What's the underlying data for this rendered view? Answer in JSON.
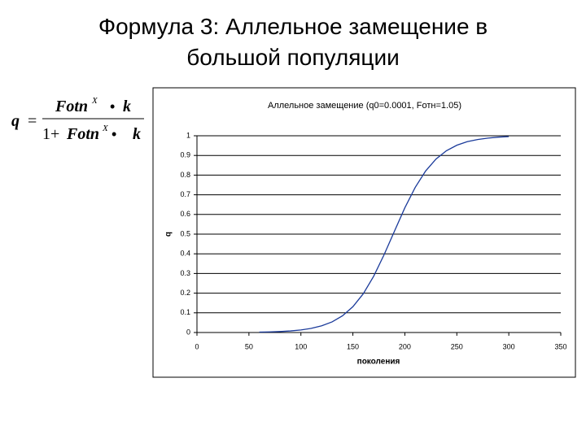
{
  "slide": {
    "title": "Формула 3: Аллельное замещение в большой популяции"
  },
  "formula": {
    "lhs": "q",
    "equals": "=",
    "numerator": {
      "base": "Fotn",
      "exponent": "X",
      "operator": "•",
      "factor": "k"
    },
    "denominator": {
      "prefix": "1+",
      "base": "Fotn",
      "exponent": "X",
      "operator": "•",
      "factor": "k"
    }
  },
  "chart_data": {
    "type": "line",
    "title": "Аллельное замещение (q0=0.0001, Fотн=1.05)",
    "x_label": "поколения",
    "y_label": "q",
    "x": [
      60,
      70,
      80,
      90,
      100,
      110,
      120,
      130,
      140,
      150,
      160,
      170,
      180,
      190,
      200,
      210,
      220,
      230,
      240,
      250,
      260,
      270,
      280,
      290,
      300
    ],
    "values": [
      0.002,
      0.003,
      0.005,
      0.008,
      0.013,
      0.021,
      0.034,
      0.054,
      0.085,
      0.131,
      0.197,
      0.286,
      0.395,
      0.515,
      0.634,
      0.738,
      0.821,
      0.882,
      0.924,
      0.952,
      0.97,
      0.981,
      0.988,
      0.993,
      0.996
    ],
    "color": "#1a3a9a",
    "xlim": [
      0,
      350
    ],
    "xticks": [
      0,
      50,
      100,
      150,
      200,
      250,
      300,
      350
    ],
    "ylim": [
      0,
      1
    ],
    "yticks": [
      0,
      0.1,
      0.2,
      0.3,
      0.4,
      0.5,
      0.6,
      0.7,
      0.8,
      0.9,
      1
    ],
    "grid": true
  }
}
